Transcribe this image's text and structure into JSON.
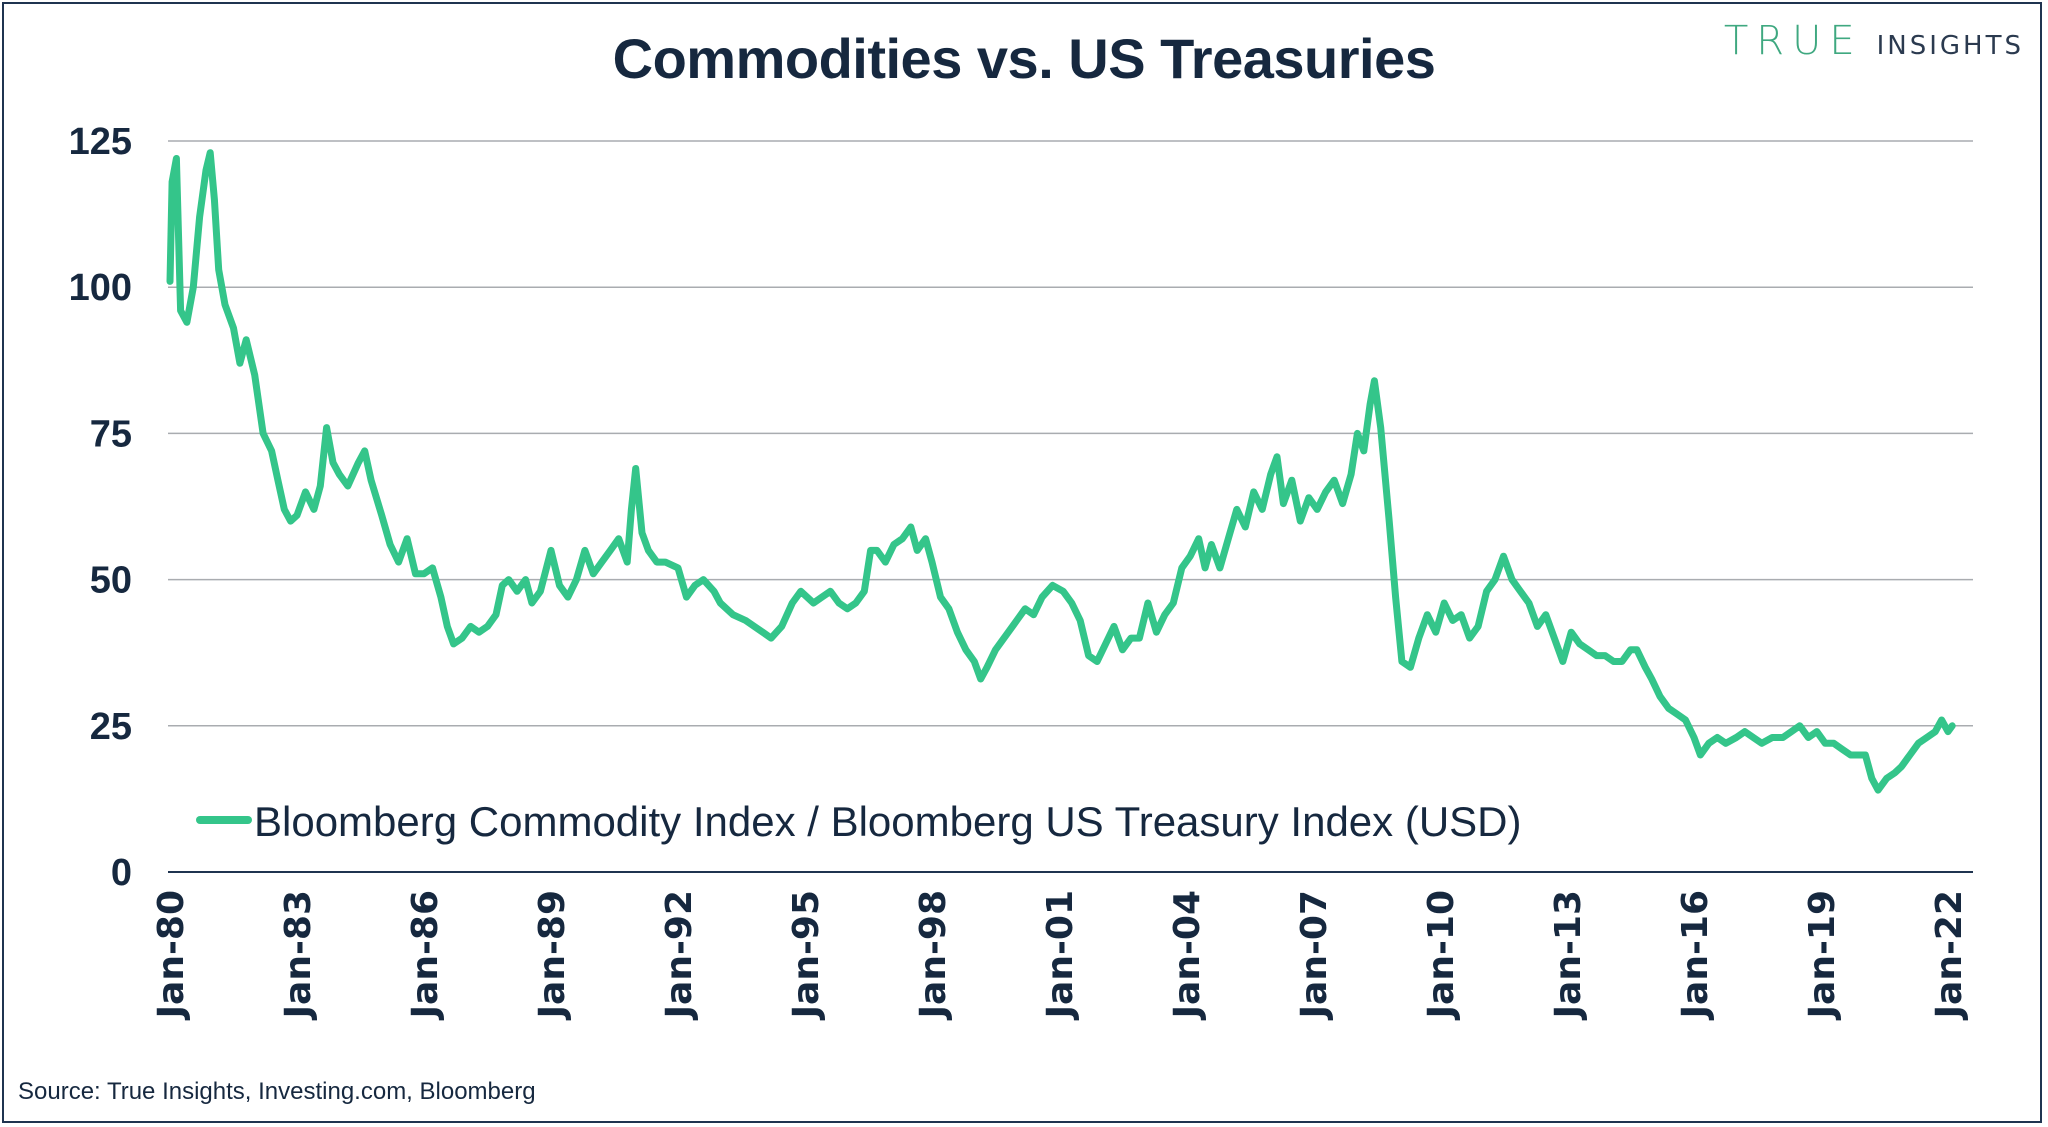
{
  "header": {
    "title": "Commodities vs. US Treasuries",
    "logo_primary": "TRUE",
    "logo_secondary": "INSIGHTS"
  },
  "footer": {
    "source": "Source: True Insights, Investing.com, Bloomberg"
  },
  "colors": {
    "series": "#34c58a",
    "text": "#16283f",
    "grid": "#a9acb0",
    "axis": "#1f3450",
    "logo_green": "#3fa880"
  },
  "chart_data": {
    "type": "line",
    "title": "Commodities vs. US Treasuries",
    "xlabel": "",
    "ylabel": "",
    "ylim": [
      0,
      125
    ],
    "yticks": [
      0,
      25,
      50,
      75,
      100,
      125
    ],
    "xlim": [
      1980,
      2022.3
    ],
    "xticks": [
      {
        "year": 1980,
        "label": "Jan-80"
      },
      {
        "year": 1983,
        "label": "Jan-83"
      },
      {
        "year": 1986,
        "label": "Jan-86"
      },
      {
        "year": 1989,
        "label": "Jan-89"
      },
      {
        "year": 1992,
        "label": "Jan-92"
      },
      {
        "year": 1995,
        "label": "Jan-95"
      },
      {
        "year": 1998,
        "label": "Jan-98"
      },
      {
        "year": 2001,
        "label": "Jan-01"
      },
      {
        "year": 2004,
        "label": "Jan-04"
      },
      {
        "year": 2007,
        "label": "Jan-07"
      },
      {
        "year": 2010,
        "label": "Jan-10"
      },
      {
        "year": 2013,
        "label": "Jan-13"
      },
      {
        "year": 2016,
        "label": "Jan-16"
      },
      {
        "year": 2019,
        "label": "Jan-19"
      },
      {
        "year": 2022,
        "label": "Jan-22"
      }
    ],
    "grid": true,
    "legend_position": "bottom-left",
    "series": [
      {
        "name": "Bloomberg Commodity Index / Bloomberg US Treasury Index (USD)",
        "x": [
          1980.0,
          1980.05,
          1980.15,
          1980.25,
          1980.4,
          1980.55,
          1980.7,
          1980.85,
          1980.95,
          1981.05,
          1981.15,
          1981.3,
          1981.5,
          1981.65,
          1981.8,
          1982.0,
          1982.2,
          1982.4,
          1982.55,
          1982.7,
          1982.85,
          1983.0,
          1983.2,
          1983.4,
          1983.55,
          1983.7,
          1983.85,
          1984.0,
          1984.2,
          1984.45,
          1984.6,
          1984.75,
          1985.0,
          1985.2,
          1985.4,
          1985.6,
          1985.8,
          1986.0,
          1986.2,
          1986.4,
          1986.55,
          1986.7,
          1986.9,
          1987.1,
          1987.3,
          1987.5,
          1987.7,
          1987.85,
          1988.0,
          1988.2,
          1988.4,
          1988.55,
          1988.75,
          1989.0,
          1989.2,
          1989.4,
          1989.6,
          1989.8,
          1990.0,
          1990.2,
          1990.4,
          1990.6,
          1990.8,
          1990.9,
          1991.0,
          1991.15,
          1991.3,
          1991.5,
          1991.7,
          1992.0,
          1992.2,
          1992.4,
          1992.6,
          1992.85,
          1993.0,
          1993.3,
          1993.6,
          1993.8,
          1994.0,
          1994.2,
          1994.45,
          1994.7,
          1994.9,
          1995.2,
          1995.4,
          1995.6,
          1995.8,
          1996.0,
          1996.2,
          1996.4,
          1996.55,
          1996.7,
          1996.9,
          1997.1,
          1997.3,
          1997.5,
          1997.65,
          1997.85,
          1998.0,
          1998.2,
          1998.4,
          1998.6,
          1998.8,
          1999.0,
          1999.15,
          1999.3,
          1999.5,
          1999.7,
          2000.0,
          2000.2,
          2000.4,
          2000.6,
          2000.85,
          2001.1,
          2001.3,
          2001.5,
          2001.7,
          2001.9,
          2002.1,
          2002.3,
          2002.5,
          2002.7,
          2002.9,
          2003.1,
          2003.3,
          2003.5,
          2003.7,
          2003.9,
          2004.1,
          2004.3,
          2004.45,
          2004.6,
          2004.8,
          2005.0,
          2005.2,
          2005.4,
          2005.6,
          2005.8,
          2006.0,
          2006.15,
          2006.3,
          2006.5,
          2006.7,
          2006.9,
          2007.1,
          2007.3,
          2007.5,
          2007.7,
          2007.9,
          2008.05,
          2008.2,
          2008.35,
          2008.45,
          2008.6,
          2008.8,
          2008.95,
          2009.1,
          2009.3,
          2009.5,
          2009.7,
          2009.9,
          2010.1,
          2010.3,
          2010.5,
          2010.7,
          2010.9,
          2011.1,
          2011.3,
          2011.5,
          2011.7,
          2011.9,
          2012.1,
          2012.3,
          2012.5,
          2012.7,
          2012.9,
          2013.1,
          2013.3,
          2013.5,
          2013.7,
          2013.9,
          2014.1,
          2014.3,
          2014.5,
          2014.65,
          2014.85,
          2015.0,
          2015.2,
          2015.4,
          2015.6,
          2015.8,
          2016.0,
          2016.15,
          2016.35,
          2016.55,
          2016.75,
          2017.0,
          2017.2,
          2017.4,
          2017.6,
          2017.85,
          2018.1,
          2018.3,
          2018.5,
          2018.7,
          2018.9,
          2019.1,
          2019.3,
          2019.5,
          2019.7,
          2019.9,
          2020.05,
          2020.2,
          2020.35,
          2020.55,
          2020.75,
          2020.9,
          2021.1,
          2021.3,
          2021.5,
          2021.7,
          2021.85,
          2022.0,
          2022.1
        ],
        "values": [
          101,
          118,
          122,
          96,
          94,
          100,
          112,
          120,
          123,
          115,
          103,
          97,
          93,
          87,
          91,
          85,
          75,
          72,
          67,
          62,
          60,
          61,
          65,
          62,
          66,
          76,
          70,
          68,
          66,
          70,
          72,
          67,
          61,
          56,
          53,
          57,
          51,
          51,
          52,
          47,
          42,
          39,
          40,
          42,
          41,
          42,
          44,
          49,
          50,
          48,
          50,
          46,
          48,
          55,
          49,
          47,
          50,
          55,
          51,
          53,
          55,
          57,
          53,
          62,
          69,
          58,
          55,
          53,
          53,
          52,
          47,
          49,
          50,
          48,
          46,
          44,
          43,
          42,
          41,
          40,
          42,
          46,
          48,
          46,
          47,
          48,
          46,
          45,
          46,
          48,
          55,
          55,
          53,
          56,
          57,
          59,
          55,
          57,
          53,
          47,
          45,
          41,
          38,
          36,
          33,
          35,
          38,
          40,
          43,
          45,
          44,
          47,
          49,
          48,
          46,
          43,
          37,
          36,
          39,
          42,
          38,
          40,
          40,
          46,
          41,
          44,
          46,
          52,
          54,
          57,
          52,
          56,
          52,
          57,
          62,
          59,
          65,
          62,
          68,
          71,
          63,
          67,
          60,
          64,
          62,
          65,
          67,
          63,
          68,
          75,
          72,
          80,
          84,
          76,
          60,
          47,
          36,
          35,
          40,
          44,
          41,
          46,
          43,
          44,
          40,
          42,
          48,
          50,
          54,
          50,
          48,
          46,
          42,
          44,
          40,
          36,
          41,
          39,
          38,
          37,
          37,
          36,
          36,
          38,
          38,
          35,
          33,
          30,
          28,
          27,
          26,
          23,
          20,
          22,
          23,
          22,
          23,
          24,
          23,
          22,
          23,
          23,
          24,
          25,
          23,
          24,
          22,
          22,
          21,
          20,
          20,
          20,
          16,
          14,
          16,
          17,
          18,
          20,
          22,
          23,
          24,
          26,
          24,
          25
        ]
      }
    ]
  }
}
